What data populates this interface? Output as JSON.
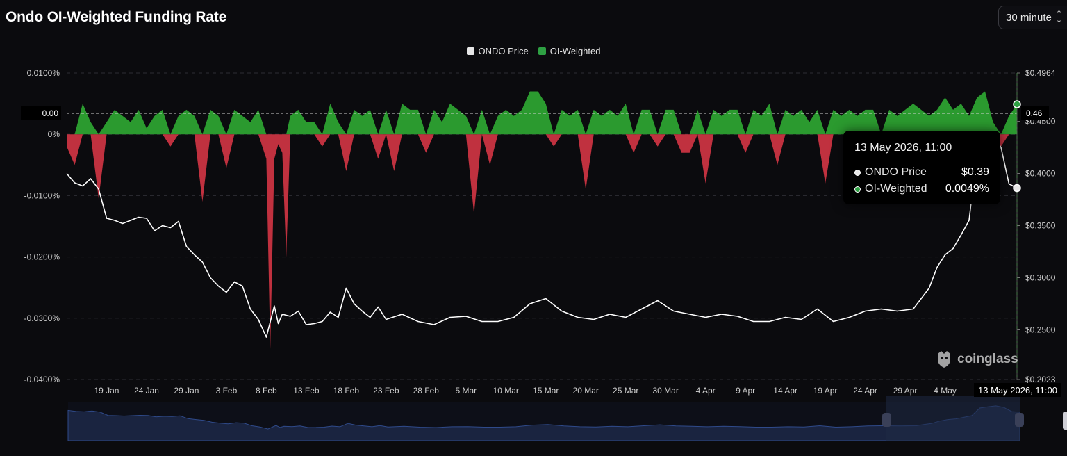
{
  "title": "Ondo OI-Weighted Funding Rate",
  "interval": {
    "value": "30 minute"
  },
  "legend": [
    {
      "name": "ONDO Price",
      "color": "#e6e6e6"
    },
    {
      "name": "OI-Weighted",
      "color": "#2ea043"
    }
  ],
  "colors": {
    "positive": "#2b9a2f",
    "negative": "#c0313f",
    "price": "#ffffff",
    "background": "#0b0b0e"
  },
  "tooltip": {
    "time": "13 May 2026, 11:00",
    "rows": [
      {
        "label": "ONDO Price",
        "value": "$0.39"
      },
      {
        "label": "OI-Weighted",
        "value": "0.0049%"
      }
    ]
  },
  "crosshair": {
    "x_label": "13 May 2026, 11:00",
    "left_value": "0.00",
    "right_value": "0.46"
  },
  "watermark": "coinglass",
  "chart_data": {
    "type": "line",
    "title": "Ondo OI-Weighted Funding Rate",
    "left_axis": {
      "ticks": [
        "0.0100%",
        "0%",
        "-0.0100%",
        "-0.0200%",
        "-0.0300%",
        "-0.0400%"
      ],
      "tick_values": [
        0.01,
        0,
        -0.01,
        -0.02,
        -0.03,
        -0.04
      ],
      "range": [
        -0.04,
        0.01
      ]
    },
    "right_axis": {
      "ticks": [
        "$0.4964",
        "$0.4500",
        "$0.4000",
        "$0.3500",
        "$0.3000",
        "$0.2500",
        "$0.2023"
      ],
      "tick_values": [
        0.4964,
        0.45,
        0.4,
        0.35,
        0.3,
        0.25,
        0.2023
      ],
      "range": [
        0.2023,
        0.4964
      ]
    },
    "x_ticks": [
      "19 Jan",
      "24 Jan",
      "29 Jan",
      "3 Feb",
      "8 Feb",
      "13 Feb",
      "18 Feb",
      "23 Feb",
      "28 Feb",
      "5 Mar",
      "10 Mar",
      "15 Mar",
      "20 Mar",
      "25 Mar",
      "30 Mar",
      "4 Apr",
      "9 Apr",
      "14 Apr",
      "19 Apr",
      "24 Apr",
      "29 Apr",
      "4 May"
    ],
    "x_tick_days": [
      5,
      10,
      15,
      20,
      25,
      30,
      35,
      40,
      45,
      50,
      55,
      60,
      65,
      70,
      75,
      80,
      85,
      90,
      95,
      100,
      105,
      110
    ],
    "x_range_days": [
      0,
      119
    ],
    "series": [
      {
        "name": "ONDO Price",
        "axis": "right",
        "x": [
          0,
          1,
          2,
          3,
          4,
          5,
          6,
          7,
          8,
          9,
          10,
          11,
          12,
          13,
          14,
          15,
          16,
          17,
          18,
          19,
          20,
          21,
          22,
          23,
          24,
          25,
          26,
          26.5,
          27,
          28,
          29,
          30,
          31,
          32,
          33,
          34,
          35,
          36,
          37,
          38,
          39,
          40,
          42,
          44,
          46,
          48,
          50,
          52,
          54,
          56,
          58,
          60,
          62,
          64,
          66,
          68,
          70,
          72,
          74,
          76,
          78,
          80,
          82,
          84,
          86,
          88,
          90,
          92,
          94,
          96,
          98,
          100,
          102,
          104,
          106,
          107,
          108,
          109,
          110,
          111,
          112,
          113,
          114,
          115,
          116,
          117,
          118,
          119
        ],
        "values": [
          0.4,
          0.391,
          0.388,
          0.395,
          0.385,
          0.357,
          0.355,
          0.352,
          0.355,
          0.358,
          0.357,
          0.345,
          0.35,
          0.348,
          0.354,
          0.33,
          0.322,
          0.315,
          0.3,
          0.292,
          0.286,
          0.296,
          0.292,
          0.27,
          0.26,
          0.243,
          0.273,
          0.256,
          0.265,
          0.263,
          0.268,
          0.255,
          0.256,
          0.258,
          0.267,
          0.262,
          0.29,
          0.275,
          0.268,
          0.262,
          0.272,
          0.26,
          0.265,
          0.258,
          0.255,
          0.262,
          0.263,
          0.258,
          0.258,
          0.262,
          0.275,
          0.28,
          0.268,
          0.262,
          0.26,
          0.265,
          0.262,
          0.27,
          0.278,
          0.268,
          0.265,
          0.262,
          0.265,
          0.263,
          0.258,
          0.258,
          0.262,
          0.26,
          0.27,
          0.258,
          0.262,
          0.268,
          0.27,
          0.268,
          0.27,
          0.28,
          0.29,
          0.31,
          0.322,
          0.328,
          0.341,
          0.355,
          0.42,
          0.43,
          0.438,
          0.425,
          0.39,
          0.386
        ]
      },
      {
        "name": "OI-Weighted",
        "axis": "left",
        "x": [
          0,
          1,
          2,
          3,
          4,
          5,
          6,
          7,
          8,
          9,
          10,
          11,
          12,
          13,
          14,
          15,
          16,
          17,
          18,
          19,
          20,
          21,
          22,
          23,
          24,
          25,
          25.5,
          26,
          26.5,
          27,
          27.5,
          28,
          29,
          30,
          31,
          32,
          33,
          34,
          35,
          36,
          37,
          38,
          39,
          40,
          41,
          42,
          43,
          44,
          45,
          46,
          47,
          48,
          49,
          50,
          51,
          52,
          53,
          54,
          55,
          56,
          57,
          58,
          59,
          60,
          61,
          62,
          63,
          64,
          65,
          66,
          67,
          68,
          69,
          70,
          71,
          72,
          73,
          74,
          75,
          76,
          77,
          78,
          79,
          80,
          81,
          82,
          83,
          84,
          85,
          86,
          87,
          88,
          89,
          90,
          91,
          92,
          93,
          94,
          95,
          96,
          97,
          98,
          99,
          100,
          101,
          102,
          103,
          104,
          105,
          106,
          107,
          108,
          109,
          110,
          111,
          112,
          113,
          114,
          115,
          116,
          117,
          118,
          119
        ],
        "values": [
          -0.002,
          -0.005,
          0.005,
          0.002,
          -0.0105,
          0.002,
          0.004,
          0.003,
          0.002,
          0.004,
          0.001,
          0.003,
          0.004,
          -0.002,
          0.003,
          0.004,
          0.003,
          -0.011,
          0.004,
          0.003,
          -0.0055,
          0.004,
          0.003,
          0.002,
          0.004,
          -0.004,
          -0.035,
          -0.004,
          -0.0016,
          -0.003,
          -0.02,
          0.003,
          0.004,
          0.002,
          0.002,
          -0.002,
          0.005,
          0.002,
          -0.006,
          0.004,
          0.003,
          0.004,
          -0.004,
          0.004,
          -0.006,
          0.005,
          0.004,
          0.004,
          -0.003,
          0.004,
          0.002,
          0.005,
          0.004,
          0.003,
          -0.013,
          0.004,
          -0.005,
          0.003,
          0.004,
          0.003,
          0.004,
          0.007,
          0.007,
          0.005,
          -0.002,
          0.004,
          0.003,
          0.004,
          -0.009,
          0.004,
          0.003,
          0.004,
          0.003,
          0.005,
          -0.003,
          0.004,
          0.004,
          -0.002,
          0.004,
          0.004,
          -0.003,
          -0.003,
          0.004,
          -0.008,
          0.004,
          0.003,
          0.004,
          0.004,
          -0.003,
          0.004,
          0.003,
          0.005,
          -0.005,
          0.004,
          0.003,
          0.004,
          0.002,
          0.004,
          -0.008,
          0.004,
          0.003,
          0.004,
          0.003,
          0.004,
          0.004,
          -0.004,
          0.004,
          0.003,
          0.004,
          0.005,
          0.004,
          0.003,
          0.004,
          0.006,
          0.004,
          0.005,
          0.003,
          0.006,
          0.007,
          0.002,
          -0.002,
          0.003,
          0.0049
        ]
      }
    ],
    "grid": true,
    "legend_position": "top-center"
  }
}
